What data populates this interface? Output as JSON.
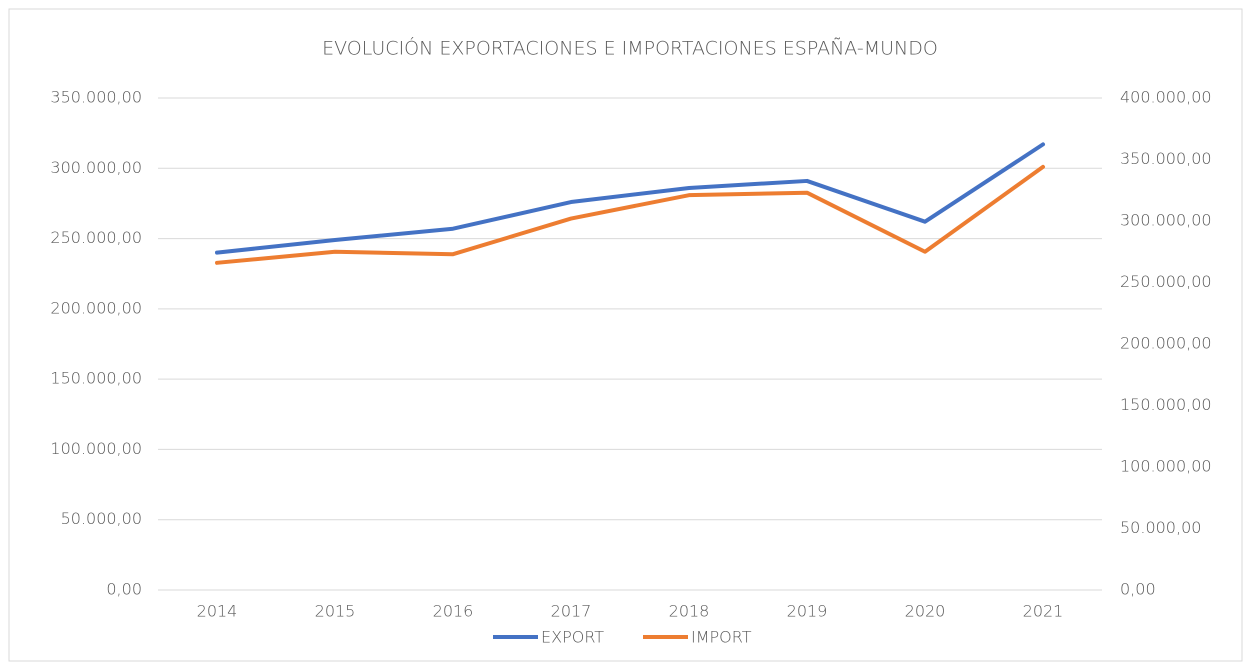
{
  "chart_data": {
    "type": "line",
    "title": "EVOLUCIÓN EXPORTACIONES E IMPORTACIONES ESPAÑA-MUNDO",
    "categories": [
      "2014",
      "2015",
      "2016",
      "2017",
      "2018",
      "2019",
      "2020",
      "2021"
    ],
    "series": [
      {
        "name": "EXPORT",
        "color": "#4472c4",
        "axis": "y",
        "values": [
          240000,
          249000,
          257000,
          276000,
          286000,
          291000,
          262000,
          317000
        ]
      },
      {
        "name": "IMPORT",
        "color": "#ed7d31",
        "axis": "y2",
        "values": [
          266000,
          275000,
          273000,
          302000,
          321000,
          323000,
          275000,
          344000
        ]
      }
    ],
    "ylim": [
      0,
      350000
    ],
    "yticks": [
      {
        "value": 0,
        "label": "0,00"
      },
      {
        "value": 50000,
        "label": "50.000,00"
      },
      {
        "value": 100000,
        "label": "100.000,00"
      },
      {
        "value": 150000,
        "label": "150.000,00"
      },
      {
        "value": 200000,
        "label": "200.000,00"
      },
      {
        "value": 250000,
        "label": "250.000,00"
      },
      {
        "value": 300000,
        "label": "300.000,00"
      },
      {
        "value": 350000,
        "label": "350.000,00"
      }
    ],
    "y2lim": [
      0,
      400000
    ],
    "y2ticks": [
      {
        "value": 0,
        "label": "0,00"
      },
      {
        "value": 50000,
        "label": "50.000,00"
      },
      {
        "value": 100000,
        "label": "100.000,00"
      },
      {
        "value": 150000,
        "label": "150.000,00"
      },
      {
        "value": 200000,
        "label": "200.000,00"
      },
      {
        "value": 250000,
        "label": "250.000,00"
      },
      {
        "value": 300000,
        "label": "300.000,00"
      },
      {
        "value": 350000,
        "label": "350.000,00"
      },
      {
        "value": 400000,
        "label": "400.000,00"
      }
    ],
    "grid": true,
    "legend": "bottom"
  }
}
